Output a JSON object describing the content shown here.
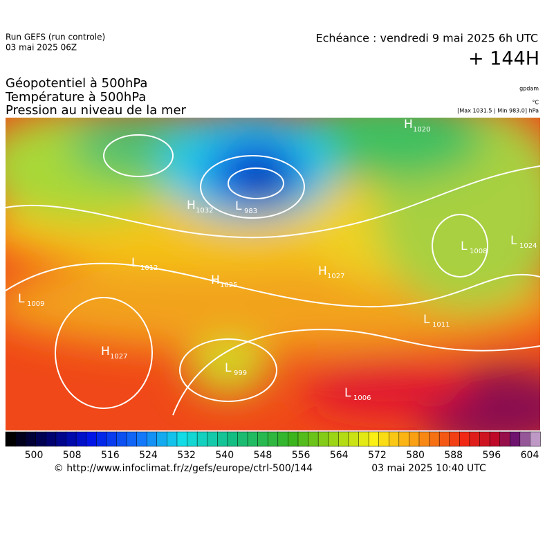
{
  "header": {
    "run": "Run GEFS (run controle)",
    "run_date": "03 mai 2025 06Z",
    "echeance": "Echéance : vendredi 9 mai 2025 6h UTC",
    "lead": "+ 144H"
  },
  "fields": [
    "Géopotentiel à 500hPa",
    "Température à 500hPa",
    "Pression au niveau de la mer"
  ],
  "units": [
    "gpdam",
    "°C"
  ],
  "range": "[Max 1031.5 | Min 983.0] hPa",
  "map_labels": [
    {
      "kind": "H",
      "value": "1020"
    },
    {
      "kind": "H",
      "value": "1032"
    },
    {
      "kind": "L",
      "value": "983"
    },
    {
      "kind": "L",
      "value": "1012"
    },
    {
      "kind": "H",
      "value": "1025"
    },
    {
      "kind": "L",
      "value": "1009"
    },
    {
      "kind": "H",
      "value": "1027"
    },
    {
      "kind": "H",
      "value": "1027"
    },
    {
      "kind": "L",
      "value": "999"
    },
    {
      "kind": "L",
      "value": "1006"
    },
    {
      "kind": "L",
      "value": "1008"
    },
    {
      "kind": "L",
      "value": "1024"
    },
    {
      "kind": "L",
      "value": "1011"
    }
  ],
  "colorbar": {
    "ticks": [
      500,
      508,
      516,
      524,
      532,
      540,
      548,
      556,
      564,
      572,
      580,
      588,
      596,
      604
    ]
  },
  "footer": {
    "url": "© http://www.infoclimat.fr/z/gefs/europe/ctrl-500/144",
    "time": "03 mai 2025 10:40 UTC"
  }
}
